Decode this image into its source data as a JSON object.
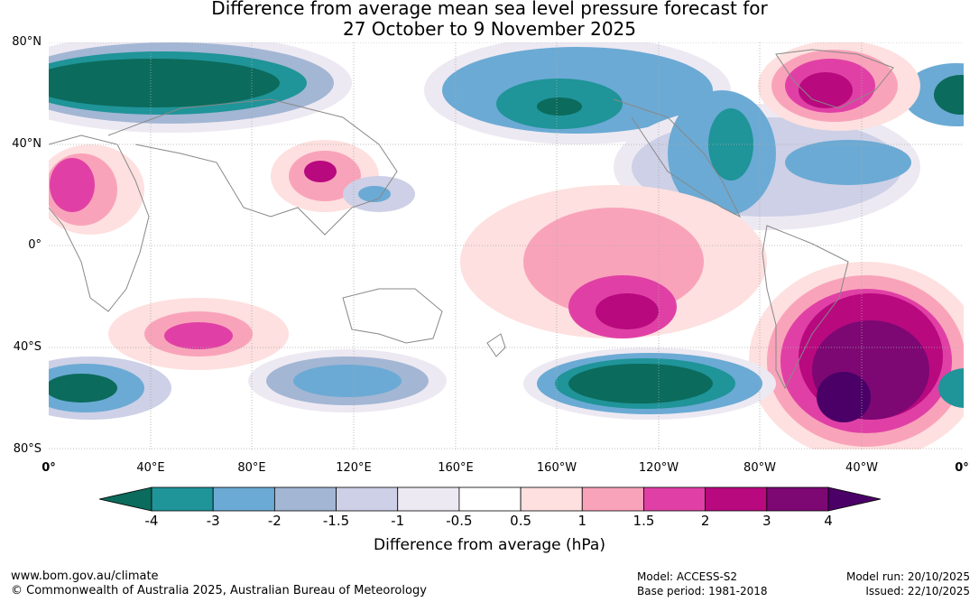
{
  "header": {
    "title_line1": "Difference from average mean sea level pressure forecast for",
    "title_line2": "27 October to 9 November 2025"
  },
  "map": {
    "lat_labels": [
      "80°N",
      "40°N",
      "0°",
      "40°S",
      "80°S"
    ],
    "lon_labels": [
      "0°",
      "40°E",
      "80°E",
      "120°E",
      "160°E",
      "160°W",
      "120°W",
      "80°W",
      "40°W",
      "0°"
    ],
    "land_color": "#888888"
  },
  "colorbar": {
    "ticks": [
      "-4",
      "-3",
      "-2",
      "-1.5",
      "-1",
      "-0.5",
      "0.5",
      "1",
      "1.5",
      "2",
      "3",
      "4"
    ],
    "colors": [
      "#0b6b5c",
      "#1f9499",
      "#6baad4",
      "#a3b6d4",
      "#cdd0e6",
      "#ede9f2",
      "#ffffff",
      "#fde0df",
      "#f9a3ba",
      "#e040a5",
      "#b8097f",
      "#7d0873",
      "#4a0066"
    ],
    "label": "Difference from average (hPa)"
  },
  "footer": {
    "site": "www.bom.gov.au/climate",
    "copyright": "© Commonwealth of Australia 2025, Australian Bureau of Meteorology",
    "model": "Model: ACCESS-S2",
    "base_period": "Base period: 1981-2018",
    "model_run": "Model run: 20/10/2025",
    "issued": "Issued: 22/10/2025"
  }
}
